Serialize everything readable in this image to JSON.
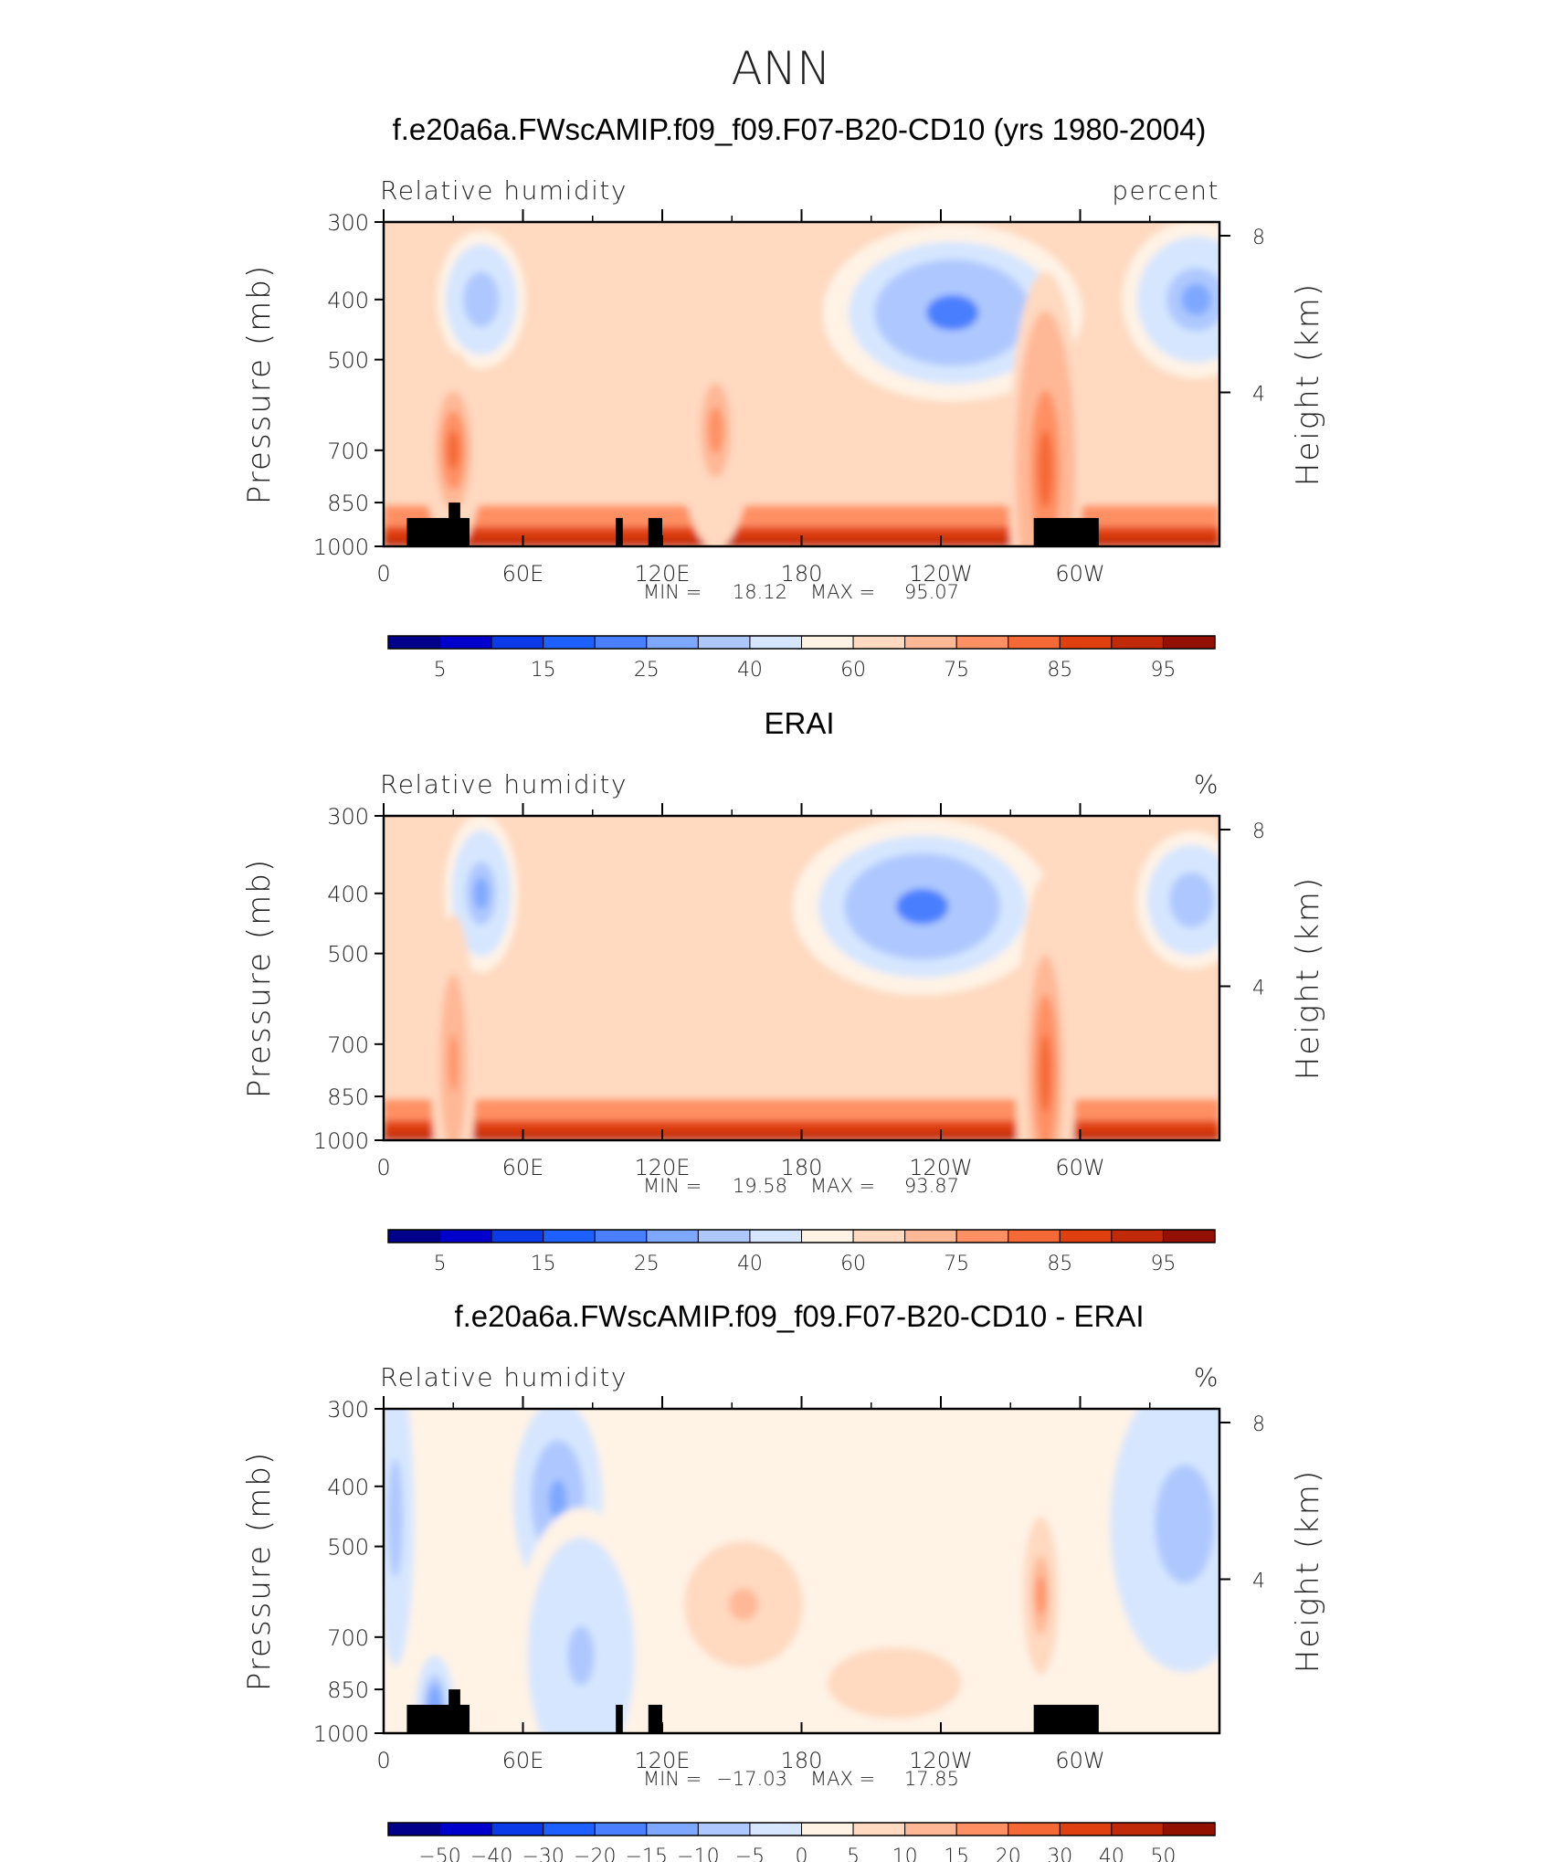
{
  "main_title": "ANN",
  "colors": {
    "rh_levels": [
      "#00008b",
      "#0000cd",
      "#0b3be8",
      "#1e60ff",
      "#4a7fff",
      "#7ea8ff",
      "#aec8ff",
      "#d6e6ff",
      "#fff3e6",
      "#ffd9c0",
      "#ffb896",
      "#ff9064",
      "#f56936",
      "#e04010",
      "#c02a08",
      "#921000"
    ],
    "diff_levels": [
      "#00008b",
      "#0000cd",
      "#0b3be8",
      "#1e60ff",
      "#4a7fff",
      "#7ea8ff",
      "#aec8ff",
      "#d6e6ff",
      "#fff3e6",
      "#ffd9c0",
      "#ffb896",
      "#ff9064",
      "#f56936",
      "#e04010",
      "#c02a08",
      "#921000"
    ],
    "land_mask": "#000000"
  },
  "chart_data": [
    {
      "type": "heatmap",
      "title": "f.e20a6a.FWscAMIP.f09_f09.F07-B20-CD10 (yrs 1980-2004)",
      "left_label": "Relative humidity",
      "right_label": "percent",
      "ylabel": "Pressure (mb)",
      "y2label": "Height (km)",
      "xlabel": "",
      "x_ticks": [
        "0",
        "60E",
        "120E",
        "180",
        "120W",
        "60W"
      ],
      "y_ticks": [
        "300",
        "400",
        "500",
        "700",
        "850",
        "1000"
      ],
      "y2_ticks": [
        "8",
        "4"
      ],
      "stats": {
        "min_label": "MIN =",
        "min": "18.12",
        "max_label": "MAX =",
        "max": "95.07"
      },
      "colorbar_labels": [
        "5",
        "15",
        "25",
        "40",
        "60",
        "75",
        "85",
        "95"
      ],
      "colorbar_levels": [
        0,
        5,
        10,
        15,
        20,
        25,
        30,
        40,
        50,
        60,
        70,
        75,
        80,
        85,
        90,
        95,
        100
      ],
      "land": [
        [
          10,
          900,
          37
        ],
        [
          28,
          850,
          33
        ],
        [
          100,
          900,
          103
        ],
        [
          114,
          900,
          120
        ],
        [
          280,
          900,
          308
        ]
      ],
      "fields": [
        {
          "lon": 170,
          "p": 970,
          "val": 88,
          "width": 110,
          "depth": 40,
          "note": "boundary"
        },
        {
          "lon": 245,
          "p": 420,
          "val": 22,
          "width": 35,
          "depth": 90
        },
        {
          "lon": 350,
          "p": 400,
          "val": 28,
          "width": 20,
          "depth": 80
        },
        {
          "lon": 42,
          "p": 400,
          "val": 30,
          "width": 12,
          "depth": 70
        },
        {
          "lon": 30,
          "p": 700,
          "val": 80,
          "width": 8,
          "depth": 100
        },
        {
          "lon": 143,
          "p": 650,
          "val": 75,
          "width": 10,
          "depth": 120
        },
        {
          "lon": 285,
          "p": 750,
          "val": 82,
          "width": 10,
          "depth": 200
        }
      ]
    },
    {
      "type": "heatmap",
      "title": "ERAI",
      "left_label": "Relative humidity",
      "right_label": "%",
      "ylabel": "Pressure (mb)",
      "y2label": "Height (km)",
      "xlabel": "",
      "x_ticks": [
        "0",
        "60E",
        "120E",
        "180",
        "120W",
        "60W"
      ],
      "y_ticks": [
        "300",
        "400",
        "500",
        "700",
        "850",
        "1000"
      ],
      "y2_ticks": [
        "8",
        "4"
      ],
      "stats": {
        "min_label": "MIN =",
        "min": "19.58",
        "max_label": "MAX =",
        "max": "93.87"
      },
      "colorbar_labels": [
        "5",
        "15",
        "25",
        "40",
        "60",
        "75",
        "85",
        "95"
      ],
      "colorbar_levels": [
        0,
        5,
        10,
        15,
        20,
        25,
        30,
        40,
        50,
        60,
        70,
        75,
        80,
        85,
        90,
        95,
        100
      ],
      "land": [],
      "fields": [
        {
          "lon": 170,
          "p": 960,
          "val": 86,
          "width": 110,
          "depth": 50,
          "note": "boundary"
        },
        {
          "lon": 232,
          "p": 420,
          "val": 22,
          "width": 35,
          "depth": 90
        },
        {
          "lon": 348,
          "p": 410,
          "val": 30,
          "width": 15,
          "depth": 70
        },
        {
          "lon": 42,
          "p": 400,
          "val": 26,
          "width": 10,
          "depth": 80
        },
        {
          "lon": 30,
          "p": 750,
          "val": 78,
          "width": 6,
          "depth": 150
        },
        {
          "lon": 285,
          "p": 780,
          "val": 80,
          "width": 8,
          "depth": 200
        }
      ]
    },
    {
      "type": "heatmap",
      "title": "f.e20a6a.FWscAMIP.f09_f09.F07-B20-CD10 - ERAI",
      "left_label": "Relative humidity",
      "right_label": "%",
      "ylabel": "Pressure (mb)",
      "y2label": "Height (km)",
      "xlabel": "",
      "x_ticks": [
        "0",
        "60E",
        "120E",
        "180",
        "120W",
        "60W"
      ],
      "y_ticks": [
        "300",
        "400",
        "500",
        "700",
        "850",
        "1000"
      ],
      "y2_ticks": [
        "8",
        "4"
      ],
      "stats": {
        "min_label": "MIN =",
        "min": "−17.03",
        "max_label": "MAX =",
        "max": "17.85"
      },
      "colorbar_labels": [
        "−50",
        "−40",
        "−30",
        "−20",
        "−15",
        "−10",
        "−5",
        "0",
        "5",
        "10",
        "15",
        "20",
        "30",
        "40",
        "50"
      ],
      "colorbar_levels": [
        -60,
        -50,
        -40,
        -30,
        -20,
        -15,
        -10,
        -5,
        0,
        5,
        10,
        15,
        20,
        30,
        40,
        50,
        60
      ],
      "land": [
        [
          10,
          900,
          37
        ],
        [
          28,
          850,
          33
        ],
        [
          100,
          900,
          103
        ],
        [
          114,
          900,
          120
        ],
        [
          280,
          900,
          308
        ]
      ],
      "fields": [
        {
          "lon": 283,
          "p": 600,
          "val": 15,
          "width": 6,
          "depth": 100
        },
        {
          "lon": 155,
          "p": 620,
          "val": 10,
          "width": 20,
          "depth": 80
        },
        {
          "lon": 220,
          "p": 830,
          "val": 9,
          "width": 30,
          "depth": 60
        },
        {
          "lon": 75,
          "p": 420,
          "val": -12,
          "width": 12,
          "depth": 100
        },
        {
          "lon": 345,
          "p": 460,
          "val": -9,
          "width": 20,
          "depth": 150
        },
        {
          "lon": 5,
          "p": 450,
          "val": -9,
          "width": 5,
          "depth": 150
        },
        {
          "lon": 22,
          "p": 900,
          "val": -14,
          "width": 5,
          "depth": 50
        },
        {
          "lon": 85,
          "p": 750,
          "val": -6,
          "width": 18,
          "depth": 150
        }
      ]
    }
  ]
}
